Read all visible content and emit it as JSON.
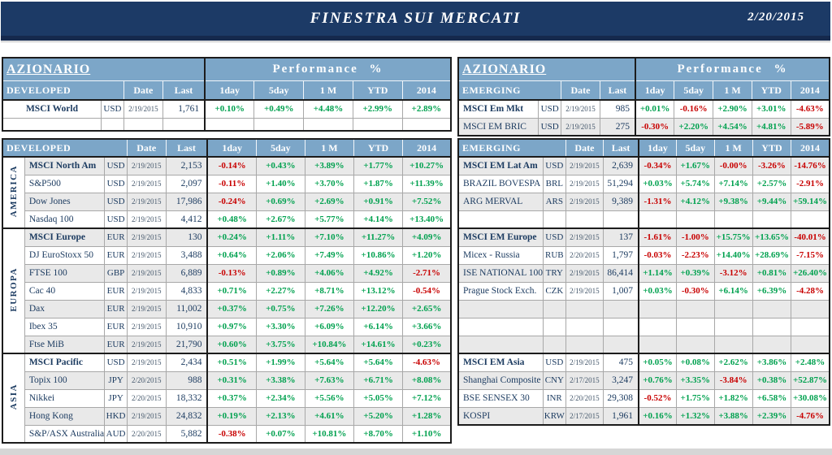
{
  "header": {
    "title": "FINESTRA SUI MERCATI",
    "date": "2/20/2015"
  },
  "colors": {
    "title_bar": "#1c3a66",
    "header_blue": "#7ca6c8",
    "positive_green": "#00a14f",
    "negative_red": "#c80000",
    "row_shade_gray": "#e9e9e9",
    "text_navy": "#17375e"
  },
  "shared": {
    "perf_label": "Performance %",
    "col_date": "Date",
    "col_last": "Last",
    "perf_cols": [
      "1day",
      "5day",
      "1 M",
      "YTD",
      "2014"
    ]
  },
  "left": {
    "section_label": "AZIONARIO",
    "block1": {
      "group_label": "DEVELOPED",
      "rows": [
        {
          "name": "MSCI World",
          "cur": "USD",
          "date": "2/19/2015",
          "last": "1,761",
          "perf": [
            "+0.10%",
            "+0.49%",
            "+4.48%",
            "+2.99%",
            "+2.89%"
          ],
          "bold": true
        },
        {
          "name": "",
          "cur": "",
          "date": "",
          "last": "",
          "perf": [
            "",
            "",
            "",
            "",
            ""
          ],
          "empty": true
        }
      ]
    },
    "block2": {
      "group_label": "DEVELOPED",
      "groups": [
        {
          "region": "AMERICA",
          "rows": [
            {
              "name": "MSCI North Am",
              "cur": "USD",
              "date": "2/19/2015",
              "last": "2,153",
              "perf": [
                "-0.14%",
                "+0.43%",
                "+3.89%",
                "+1.77%",
                "+10.27%"
              ],
              "bold": true
            },
            {
              "name": "S&P500",
              "cur": "USD",
              "date": "2/19/2015",
              "last": "2,097",
              "perf": [
                "-0.11%",
                "+1.40%",
                "+3.70%",
                "+1.87%",
                "+11.39%"
              ]
            },
            {
              "name": "Dow Jones",
              "cur": "USD",
              "date": "2/19/2015",
              "last": "17,986",
              "perf": [
                "-0.24%",
                "+0.69%",
                "+2.69%",
                "+0.91%",
                "+7.52%"
              ]
            },
            {
              "name": "Nasdaq 100",
              "cur": "USD",
              "date": "2/19/2015",
              "last": "4,412",
              "perf": [
                "+0.48%",
                "+2.67%",
                "+5.77%",
                "+4.14%",
                "+13.40%"
              ]
            }
          ]
        },
        {
          "region": "EUROPA",
          "rows": [
            {
              "name": "MSCI Europe",
              "cur": "EUR",
              "date": "2/19/2015",
              "last": "130",
              "perf": [
                "+0.24%",
                "+1.11%",
                "+7.10%",
                "+11.27%",
                "+4.09%"
              ],
              "bold": true
            },
            {
              "name": "DJ EuroStoxx 50",
              "cur": "EUR",
              "date": "2/19/2015",
              "last": "3,488",
              "perf": [
                "+0.64%",
                "+2.06%",
                "+7.49%",
                "+10.86%",
                "+1.20%"
              ]
            },
            {
              "name": "FTSE 100",
              "cur": "GBP",
              "date": "2/19/2015",
              "last": "6,889",
              "perf": [
                "-0.13%",
                "+0.89%",
                "+4.06%",
                "+4.92%",
                "-2.71%"
              ]
            },
            {
              "name": "Cac 40",
              "cur": "EUR",
              "date": "2/19/2015",
              "last": "4,833",
              "perf": [
                "+0.71%",
                "+2.27%",
                "+8.71%",
                "+13.12%",
                "-0.54%"
              ]
            },
            {
              "name": "Dax",
              "cur": "EUR",
              "date": "2/19/2015",
              "last": "11,002",
              "perf": [
                "+0.37%",
                "+0.75%",
                "+7.26%",
                "+12.20%",
                "+2.65%"
              ]
            },
            {
              "name": "Ibex 35",
              "cur": "EUR",
              "date": "2/19/2015",
              "last": "10,910",
              "perf": [
                "+0.97%",
                "+3.30%",
                "+6.09%",
                "+6.14%",
                "+3.66%"
              ]
            },
            {
              "name": "Ftse MiB",
              "cur": "EUR",
              "date": "2/19/2015",
              "last": "21,790",
              "perf": [
                "+0.60%",
                "+3.75%",
                "+10.84%",
                "+14.61%",
                "+0.23%"
              ]
            }
          ]
        },
        {
          "region": "ASIA",
          "rows": [
            {
              "name": "MSCI Pacific",
              "cur": "USD",
              "date": "2/19/2015",
              "last": "2,434",
              "perf": [
                "+0.51%",
                "+1.99%",
                "+5.64%",
                "+5.64%",
                "-4.63%"
              ],
              "bold": true
            },
            {
              "name": "Topix 100",
              "cur": "JPY",
              "date": "2/20/2015",
              "last": "988",
              "perf": [
                "+0.31%",
                "+3.38%",
                "+7.63%",
                "+6.71%",
                "+8.08%"
              ]
            },
            {
              "name": "Nikkei",
              "cur": "JPY",
              "date": "2/20/2015",
              "last": "18,332",
              "perf": [
                "+0.37%",
                "+2.34%",
                "+5.56%",
                "+5.05%",
                "+7.12%"
              ]
            },
            {
              "name": "Hong Kong",
              "cur": "HKD",
              "date": "2/19/2015",
              "last": "24,832",
              "perf": [
                "+0.19%",
                "+2.13%",
                "+4.61%",
                "+5.20%",
                "+1.28%"
              ]
            },
            {
              "name": "S&P/ASX Australia",
              "cur": "AUD",
              "date": "2/20/2015",
              "last": "5,882",
              "perf": [
                "-0.38%",
                "+0.07%",
                "+10.81%",
                "+8.70%",
                "+1.10%"
              ]
            }
          ]
        }
      ]
    }
  },
  "right": {
    "section_label": "AZIONARIO",
    "block1": {
      "group_label": "EMERGING",
      "rows": [
        {
          "name": "MSCI Em Mkt",
          "cur": "USD",
          "date": "2/19/2015",
          "last": "985",
          "perf": [
            "+0.01%",
            "-0.16%",
            "+2.90%",
            "+3.01%",
            "-4.63%"
          ],
          "bold": true
        },
        {
          "name": "MSCI EM BRIC",
          "cur": "USD",
          "date": "2/19/2015",
          "last": "275",
          "perf": [
            "-0.30%",
            "+2.20%",
            "+4.54%",
            "+4.81%",
            "-5.89%"
          ]
        }
      ]
    },
    "block2": {
      "group_label": "EMERGING",
      "groups": [
        {
          "region": "",
          "rows": [
            {
              "name": "MSCI EM Lat Am",
              "cur": "USD",
              "date": "2/19/2015",
              "last": "2,639",
              "perf": [
                "-0.34%",
                "+1.67%",
                "-0.00%",
                "-3.26%",
                "-14.76%"
              ],
              "bold": true
            },
            {
              "name": "BRAZIL BOVESPA",
              "cur": "BRL",
              "date": "2/19/2015",
              "last": "51,294",
              "perf": [
                "+0.03%",
                "+5.74%",
                "+7.14%",
                "+2.57%",
                "-2.91%"
              ]
            },
            {
              "name": "ARG MERVAL",
              "cur": "ARS",
              "date": "2/19/2015",
              "last": "9,389",
              "perf": [
                "-1.31%",
                "+4.12%",
                "+9.38%",
                "+9.44%",
                "+59.14%"
              ]
            },
            {
              "name": "",
              "cur": "",
              "date": "",
              "last": "",
              "perf": [
                "",
                "",
                "",
                "",
                ""
              ]
            }
          ]
        },
        {
          "region": "",
          "rows": [
            {
              "name": "MSCI EM Europe",
              "cur": "USD",
              "date": "2/19/2015",
              "last": "137",
              "perf": [
                "-1.61%",
                "-1.00%",
                "+15.75%",
                "+13.65%",
                "-40.01%"
              ],
              "bold": true
            },
            {
              "name": "Micex - Russia",
              "cur": "RUB",
              "date": "2/20/2015",
              "last": "1,797",
              "perf": [
                "-0.03%",
                "-2.23%",
                "+14.40%",
                "+28.69%",
                "-7.15%"
              ]
            },
            {
              "name": "ISE NATIONAL 100",
              "cur": "TRY",
              "date": "2/19/2015",
              "last": "86,414",
              "perf": [
                "+1.14%",
                "+0.39%",
                "-3.12%",
                "+0.81%",
                "+26.40%"
              ]
            },
            {
              "name": "Prague Stock Exch.",
              "cur": "CZK",
              "date": "2/19/2015",
              "last": "1,007",
              "perf": [
                "+0.03%",
                "-0.30%",
                "+6.14%",
                "+6.39%",
                "-4.28%"
              ]
            },
            {
              "name": "",
              "cur": "",
              "date": "",
              "last": "",
              "perf": [
                "",
                "",
                "",
                "",
                ""
              ]
            },
            {
              "name": "",
              "cur": "",
              "date": "",
              "last": "",
              "perf": [
                "",
                "",
                "",
                "",
                ""
              ]
            },
            {
              "name": "",
              "cur": "",
              "date": "",
              "last": "",
              "perf": [
                "",
                "",
                "",
                "",
                ""
              ]
            }
          ]
        },
        {
          "region": "",
          "rows": [
            {
              "name": "MSCI EM Asia",
              "cur": "USD",
              "date": "2/19/2015",
              "last": "475",
              "perf": [
                "+0.05%",
                "+0.08%",
                "+2.62%",
                "+3.86%",
                "+2.48%"
              ],
              "bold": true
            },
            {
              "name": "Shanghai Composite",
              "cur": "CNY",
              "date": "2/17/2015",
              "last": "3,247",
              "perf": [
                "+0.76%",
                "+3.35%",
                "-3.84%",
                "+0.38%",
                "+52.87%"
              ]
            },
            {
              "name": "BSE SENSEX 30",
              "cur": "INR",
              "date": "2/20/2015",
              "last": "29,308",
              "perf": [
                "-0.52%",
                "+1.75%",
                "+1.82%",
                "+6.58%",
                "+30.08%"
              ]
            },
            {
              "name": "KOSPI",
              "cur": "KRW",
              "date": "2/17/2015",
              "last": "1,961",
              "perf": [
                "+0.16%",
                "+1.32%",
                "+3.88%",
                "+2.39%",
                "-4.76%"
              ]
            }
          ]
        }
      ]
    }
  }
}
